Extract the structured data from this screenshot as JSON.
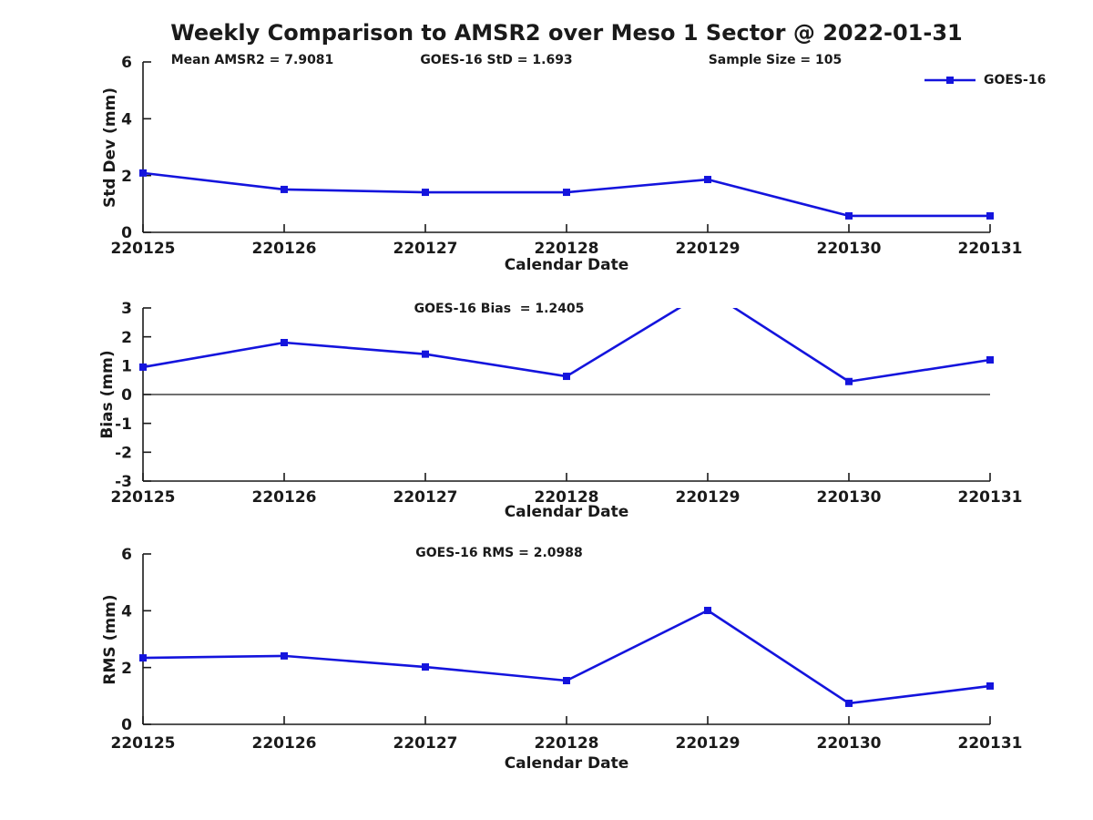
{
  "figure": {
    "title": "Weekly Comparison to AMSR2 over Meso 1 Sector @ 2022-01-31",
    "annotations": {
      "mean_amsr2": "Mean AMSR2 = 7.9081",
      "goes16_std": "GOES-16 StD = 1.693",
      "sample_size": "Sample Size = 105"
    },
    "legend": {
      "label": "GOES-16",
      "color": "#1414dd"
    },
    "axis_color": "#1a1a1a"
  },
  "chart_data": [
    {
      "type": "line",
      "subtitle": "",
      "categories": [
        "220125",
        "220126",
        "220127",
        "220128",
        "220129",
        "220130",
        "220131"
      ],
      "series": [
        {
          "name": "GOES-16",
          "color": "#1414dd",
          "marker": "square",
          "values": [
            2.09,
            1.51,
            1.41,
            1.41,
            1.86,
            0.58,
            0.58
          ]
        }
      ],
      "xlabel": "Calendar Date",
      "ylabel": "Std Dev (mm)",
      "ylim": [
        0,
        6
      ],
      "yticks": [
        0,
        2,
        4,
        6
      ],
      "grid": false,
      "zero_line": false,
      "legend_position": "top-right"
    },
    {
      "type": "line",
      "subtitle": "GOES-16 Bias  = 1.2405",
      "categories": [
        "220125",
        "220126",
        "220127",
        "220128",
        "220129",
        "220130",
        "220131"
      ],
      "series": [
        {
          "name": "GOES-16",
          "color": "#1414dd",
          "marker": "square",
          "values": [
            0.95,
            1.8,
            1.4,
            0.63,
            3.6,
            0.45,
            1.2
          ]
        }
      ],
      "note": "220129 value exceeds ymax and is clipped at top of axes",
      "xlabel": "Calendar Date",
      "ylabel": "Bias (mm)",
      "ylim": [
        -3,
        3
      ],
      "yticks": [
        -3,
        -2,
        -1,
        0,
        1,
        2,
        3
      ],
      "grid": false,
      "zero_line": true
    },
    {
      "type": "line",
      "subtitle": "GOES-16 RMS = 2.0988",
      "categories": [
        "220125",
        "220126",
        "220127",
        "220128",
        "220129",
        "220130",
        "220131"
      ],
      "series": [
        {
          "name": "GOES-16",
          "color": "#1414dd",
          "marker": "square",
          "values": [
            2.34,
            2.41,
            2.02,
            1.54,
            4.01,
            0.74,
            1.35
          ]
        }
      ],
      "xlabel": "Calendar Date",
      "ylabel": "RMS (mm)",
      "ylim": [
        0,
        6
      ],
      "yticks": [
        0,
        2,
        4,
        6
      ],
      "grid": false,
      "zero_line": false
    }
  ]
}
